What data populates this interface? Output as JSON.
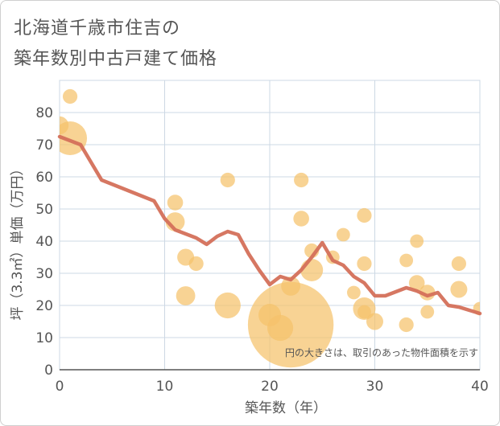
{
  "title_lines": [
    "北海道千歳市住吉の",
    "築年数別中古戸建て価格"
  ],
  "colors": {
    "bubble": "#f5c26b",
    "line": "#d4705a",
    "grid": "#cdd8e4",
    "axis": "#555555"
  },
  "chart_data": {
    "type": "scatter",
    "title": "北海道千歳市住吉の築年数別中古戸建て価格",
    "xlabel": "築年数（年）",
    "ylabel": "坪（3.3㎡）単価（万円）",
    "xlim": [
      0,
      40
    ],
    "ylim": [
      0,
      90
    ],
    "xticks": [
      0,
      10,
      20,
      30,
      40
    ],
    "yticks": [
      0,
      10,
      20,
      30,
      40,
      50,
      60,
      70,
      80
    ],
    "grid": true,
    "note": "円の大きさは、取引のあった物件面積を示す",
    "bubbles": [
      {
        "x": 0,
        "y": 76,
        "size": 1.6
      },
      {
        "x": 1,
        "y": 85,
        "size": 1.3
      },
      {
        "x": 1,
        "y": 72,
        "size": 3.0
      },
      {
        "x": 11,
        "y": 52,
        "size": 1.4
      },
      {
        "x": 11,
        "y": 46,
        "size": 1.7
      },
      {
        "x": 12,
        "y": 35,
        "size": 1.5
      },
      {
        "x": 12,
        "y": 23,
        "size": 1.7
      },
      {
        "x": 13,
        "y": 33,
        "size": 1.3
      },
      {
        "x": 16,
        "y": 59,
        "size": 1.3
      },
      {
        "x": 16,
        "y": 20,
        "size": 2.3
      },
      {
        "x": 20,
        "y": 17,
        "size": 2.0
      },
      {
        "x": 21,
        "y": 13,
        "size": 2.3
      },
      {
        "x": 22,
        "y": 14,
        "size": 7.6
      },
      {
        "x": 22,
        "y": 26,
        "size": 1.7
      },
      {
        "x": 23,
        "y": 59,
        "size": 1.3
      },
      {
        "x": 23,
        "y": 47,
        "size": 1.4
      },
      {
        "x": 24,
        "y": 37,
        "size": 1.3
      },
      {
        "x": 24,
        "y": 31,
        "size": 2.0
      },
      {
        "x": 26,
        "y": 35,
        "size": 1.2
      },
      {
        "x": 27,
        "y": 42,
        "size": 1.2
      },
      {
        "x": 28,
        "y": 24,
        "size": 1.2
      },
      {
        "x": 29,
        "y": 48,
        "size": 1.3
      },
      {
        "x": 29,
        "y": 33,
        "size": 1.3
      },
      {
        "x": 29,
        "y": 19,
        "size": 2.0
      },
      {
        "x": 29,
        "y": 18,
        "size": 1.2
      },
      {
        "x": 30,
        "y": 15,
        "size": 1.5
      },
      {
        "x": 33,
        "y": 34,
        "size": 1.2
      },
      {
        "x": 33,
        "y": 14,
        "size": 1.3
      },
      {
        "x": 34,
        "y": 40,
        "size": 1.2
      },
      {
        "x": 34,
        "y": 27,
        "size": 1.4
      },
      {
        "x": 35,
        "y": 24,
        "size": 1.4
      },
      {
        "x": 35,
        "y": 18,
        "size": 1.2
      },
      {
        "x": 38,
        "y": 33,
        "size": 1.3
      },
      {
        "x": 38,
        "y": 25,
        "size": 1.5
      },
      {
        "x": 40,
        "y": 19,
        "size": 1.2
      }
    ],
    "trend_line": {
      "x": [
        0,
        2,
        4,
        9,
        10,
        11,
        13,
        14,
        15,
        16,
        17,
        18,
        19,
        20,
        21,
        22,
        23,
        24,
        25,
        26,
        27,
        28,
        29,
        30,
        31,
        33,
        34,
        35,
        36,
        37,
        38,
        40
      ],
      "y": [
        72.5,
        70,
        59,
        52.5,
        47,
        43.5,
        41,
        39,
        41.5,
        43,
        42,
        36,
        31,
        26.5,
        29,
        28,
        31,
        35,
        39.5,
        34,
        32.5,
        29,
        27,
        23,
        23,
        25.5,
        24.5,
        23,
        24,
        20,
        19.5,
        17.5
      ]
    }
  }
}
